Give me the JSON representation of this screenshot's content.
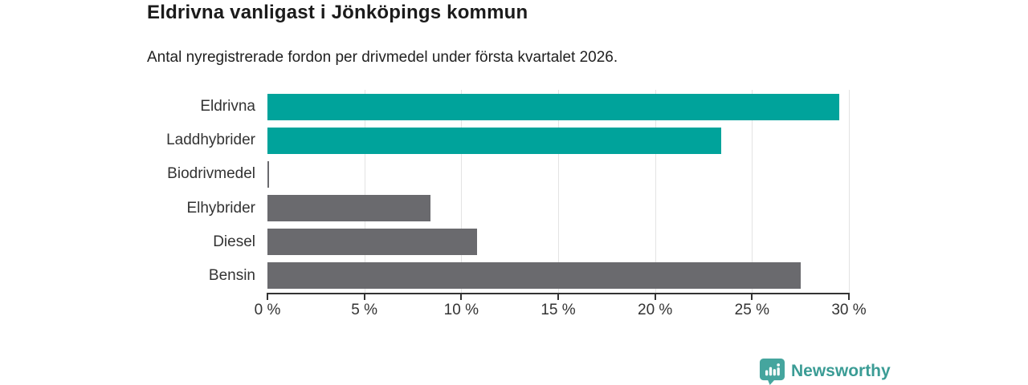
{
  "header": {
    "title": "Eldrivna vanligast i Jönköpings kommun",
    "subtitle": "Antal nyregistrerade fordon per drivmedel under första kvartalet 2026."
  },
  "chart_data": {
    "type": "bar",
    "orientation": "horizontal",
    "title": "Eldrivna vanligast i Jönköpings kommun",
    "subtitle": "Antal nyregistrerade fordon per drivmedel under första kvartalet 2026.",
    "categories": [
      "Eldrivna",
      "Laddhybrider",
      "Biodrivmedel",
      "Elhybrider",
      "Diesel",
      "Bensin"
    ],
    "values": [
      29.5,
      23.4,
      0.1,
      8.4,
      10.8,
      27.5
    ],
    "unit": "%",
    "xlim": [
      0,
      30
    ],
    "x_tick_values": [
      0,
      5,
      10,
      15,
      20,
      25,
      30
    ],
    "x_tick_labels": [
      "0 %",
      "5 %",
      "10 %",
      "15 %",
      "20 %",
      "25 %",
      "30 %"
    ],
    "bar_colors": [
      "#00a39b",
      "#00a39b",
      "#6a6a6e",
      "#6a6a6e",
      "#6a6a6e",
      "#6a6a6e"
    ],
    "grid": true,
    "legend": false
  },
  "branding": {
    "logo_text": "Newsworthy",
    "logo_icon": "newsworthy-pin-barchart-icon",
    "logo_color": "#3b9c95"
  },
  "colors": {
    "accent_teal": "#00a39b",
    "neutral_gray": "#6a6a6e",
    "gridline": "#e3e3e3",
    "axis": "#333333",
    "background": "#ffffff"
  }
}
